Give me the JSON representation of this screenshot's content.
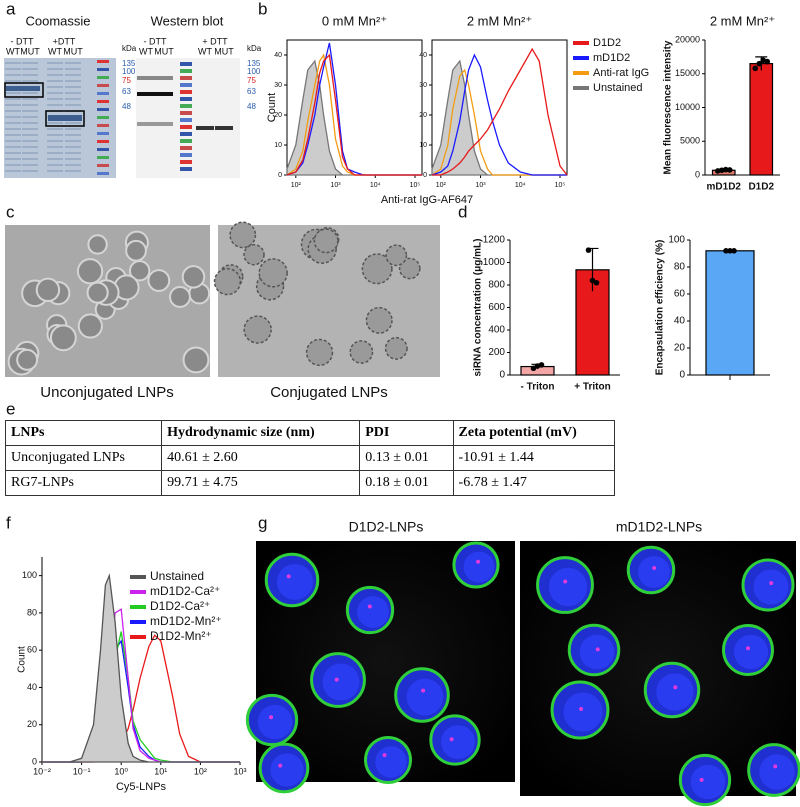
{
  "panel_labels": [
    "a",
    "b",
    "c",
    "d",
    "e",
    "f",
    "g"
  ],
  "gels": {
    "coomassie": {
      "title": "Coomassie",
      "conditions": [
        "- DTT",
        "+DTT"
      ],
      "lanes": [
        "WT",
        "MUT",
        "WT",
        "MUT"
      ]
    },
    "western": {
      "title": "Western blot",
      "conditions": [
        "- DTT",
        "+ DTT"
      ],
      "lanes": [
        "WT",
        "MUT",
        "WT",
        "MUT"
      ]
    },
    "ladder_unit": "kDa",
    "ladder": [
      "135",
      "100",
      "75",
      "63",
      "48"
    ],
    "ladder_colors": [
      "#2a5caa",
      "#2a5caa",
      "#d62020",
      "#2a5caa",
      "#2a5caa"
    ]
  },
  "images": {
    "tem": [
      "Unconjugated LNPs",
      "Conjugated LNPs"
    ],
    "confocal": [
      "D1D2-LNPs",
      "mD1D2-LNPs"
    ]
  },
  "table": {
    "header": [
      "LNPs",
      "Hydrodynamic size (nm)",
      "PDI",
      "Zeta potential (mV)"
    ],
    "rows": [
      [
        "Unconjugated LNPs",
        "40.61 ± 2.60",
        "0.13 ± 0.01",
        "-10.91 ± 1.44"
      ],
      [
        "RG7-LNPs",
        "99.71 ± 4.75",
        "0.18 ± 0.01",
        "-6.78 ± 1.47"
      ]
    ]
  },
  "chart_data": [
    {
      "type": "line",
      "title": "0 mM Mn²⁺",
      "xlabel": "Anti-rat IgG-AF647",
      "ylabel": "Count",
      "log_x": true,
      "x": [
        60,
        100,
        150,
        200,
        300,
        400,
        500,
        700,
        1000,
        1500,
        2000,
        3000,
        5000,
        10000,
        20000,
        30000,
        50000,
        100000,
        150000
      ],
      "xlim": [
        60,
        150000
      ],
      "xticks": [
        {
          "value": 100,
          "label": "10²"
        },
        {
          "value": 1000,
          "label": "10³"
        },
        {
          "value": 10000,
          "label": "10⁴"
        },
        {
          "value": 100000,
          "label": "10⁵"
        }
      ],
      "ylim": [
        0,
        45
      ],
      "yticks": [
        0,
        10,
        20,
        30,
        40
      ],
      "series": [
        {
          "color": "#777777",
          "fill": "#cccccc",
          "values": [
            2,
            10,
            25,
            35,
            38,
            30,
            20,
            8,
            2,
            0,
            0,
            0,
            0,
            0,
            0,
            0,
            0,
            0,
            0
          ]
        },
        {
          "color": "#f39c12",
          "values": [
            0,
            2,
            8,
            18,
            30,
            38,
            40,
            30,
            12,
            3,
            1,
            0,
            0,
            0,
            0,
            0,
            0,
            0,
            0
          ]
        },
        {
          "color": "#1a1aff",
          "values": [
            0,
            1,
            4,
            10,
            20,
            30,
            36,
            44,
            30,
            8,
            2,
            1,
            0,
            0,
            0,
            0,
            0,
            0,
            0
          ]
        },
        {
          "color": "#e8191a",
          "values": [
            0,
            1,
            5,
            12,
            24,
            34,
            38,
            40,
            25,
            6,
            2,
            0,
            0,
            0,
            0,
            0,
            0,
            0,
            0
          ]
        }
      ]
    },
    {
      "type": "line",
      "title": "2 mM Mn²⁺",
      "log_x": true,
      "legend": "outside-right",
      "x": [
        60,
        100,
        150,
        200,
        300,
        400,
        500,
        700,
        1000,
        1500,
        2000,
        3000,
        5000,
        10000,
        20000,
        30000,
        50000,
        100000,
        150000
      ],
      "xlim": [
        60,
        150000
      ],
      "xticks": [
        {
          "value": 100,
          "label": "10²"
        },
        {
          "value": 1000,
          "label": "10³"
        },
        {
          "value": 10000,
          "label": "10⁴"
        },
        {
          "value": 100000,
          "label": "10⁵"
        }
      ],
      "ylim": [
        0,
        45
      ],
      "yticks": [
        0,
        10,
        20,
        30,
        40
      ],
      "series": [
        {
          "name": "Unstained",
          "color": "#777777",
          "fill": "#cccccc",
          "values": [
            2,
            10,
            25,
            35,
            38,
            30,
            20,
            8,
            2,
            0,
            0,
            0,
            0,
            0,
            0,
            0,
            0,
            0,
            0
          ]
        },
        {
          "name": "Anti-rat IgG",
          "color": "#f39c12",
          "values": [
            0,
            2,
            10,
            22,
            33,
            35,
            30,
            20,
            8,
            2,
            0,
            0,
            0,
            0,
            0,
            0,
            0,
            0,
            0
          ]
        },
        {
          "name": "mD1D2",
          "color": "#1a1aff",
          "values": [
            0,
            1,
            3,
            8,
            18,
            28,
            35,
            40,
            36,
            25,
            18,
            10,
            4,
            1,
            0,
            0,
            0,
            0,
            0
          ]
        },
        {
          "name": "D1D2",
          "color": "#e8191a",
          "values": [
            0,
            0,
            1,
            2,
            4,
            6,
            8,
            10,
            12,
            15,
            18,
            22,
            28,
            35,
            42,
            38,
            20,
            3,
            0
          ]
        }
      ]
    },
    {
      "type": "bar",
      "title": "2 mM Mn²⁺",
      "ylabel": "Mean fluorescence intensity",
      "categories": [
        "mD1D2",
        "D1D2"
      ],
      "values": [
        700,
        16500
      ],
      "errors": [
        150,
        1000
      ],
      "points": [
        [
          600,
          700,
          800,
          750
        ],
        [
          15800,
          16500,
          17000,
          16800
        ]
      ],
      "colors": [
        "#e07b6a",
        "#e8191a"
      ],
      "ylim": [
        0,
        20000
      ],
      "yticks": [
        0,
        5000,
        10000,
        15000,
        20000
      ]
    },
    {
      "type": "bar",
      "ylabel": "siRNA concentration (μg/mL)",
      "categories": [
        "- Triton",
        "+ Triton"
      ],
      "values": [
        75,
        935
      ],
      "errors": [
        20,
        190
      ],
      "points": [
        [
          60,
          80,
          90
        ],
        [
          1110,
          840,
          820
        ]
      ],
      "colors": [
        "#f2a6a6",
        "#e8191a"
      ],
      "ylim": [
        0,
        1200
      ],
      "yticks": [
        0,
        200,
        400,
        600,
        800,
        1000,
        1200
      ]
    },
    {
      "type": "bar",
      "ylabel": "Encapsulation efficiency (%)",
      "categories": [
        null
      ],
      "values": [
        92
      ],
      "errors": [
        0.5
      ],
      "points": [
        [
          92,
          92,
          92
        ]
      ],
      "colors": [
        "#5aa7f5"
      ],
      "ylim": [
        0,
        100
      ],
      "yticks": [
        0,
        20,
        40,
        60,
        80,
        100
      ]
    },
    {
      "type": "line",
      "xlabel": "Cy5-LNPs",
      "ylabel": "Count",
      "log_x": true,
      "legend": "upper right",
      "x": [
        0.01,
        0.05,
        0.1,
        0.2,
        0.3,
        0.4,
        0.5,
        0.7,
        1,
        1.5,
        2,
        3,
        5,
        7,
        10,
        20,
        30,
        50,
        100,
        1000
      ],
      "xlim": [
        0.01,
        1000
      ],
      "xticks": [
        {
          "value": 0.01,
          "label": "10⁻²"
        },
        {
          "value": 0.1,
          "label": "10⁻¹"
        },
        {
          "value": 1,
          "label": "10⁰"
        },
        {
          "value": 10,
          "label": "10¹"
        },
        {
          "value": 100,
          "label": "10²"
        },
        {
          "value": 1000,
          "label": "10³"
        }
      ],
      "ylim": [
        0,
        110
      ],
      "yticks": [
        0,
        20,
        40,
        60,
        80,
        100
      ],
      "series": [
        {
          "name": "D1D2-Mn²⁺",
          "color": "#e8191a",
          "values": [
            0,
            0,
            0,
            0,
            1,
            2,
            3,
            6,
            10,
            18,
            28,
            45,
            62,
            68,
            65,
            35,
            15,
            3,
            0,
            0
          ]
        },
        {
          "name": "mD1D2-Mn²⁺",
          "color": "#1a1aff",
          "values": [
            0,
            0,
            0,
            3,
            12,
            25,
            40,
            60,
            65,
            40,
            20,
            8,
            3,
            1,
            0,
            0,
            0,
            0,
            0,
            0
          ]
        },
        {
          "name": "D1D2-Ca²⁺",
          "color": "#22cc22",
          "values": [
            0,
            0,
            0,
            3,
            12,
            25,
            38,
            55,
            70,
            45,
            22,
            12,
            6,
            2,
            1,
            0,
            0,
            0,
            0,
            0
          ]
        },
        {
          "name": "mD1D2-Ca²⁺",
          "color": "#cc22ee",
          "values": [
            0,
            0,
            0,
            4,
            15,
            30,
            50,
            80,
            82,
            45,
            18,
            6,
            2,
            1,
            0,
            0,
            0,
            0,
            0,
            0
          ]
        },
        {
          "name": "Unstained",
          "color": "#555555",
          "fill": "#cccccc",
          "values": [
            0,
            0,
            2,
            20,
            60,
            95,
            100,
            75,
            35,
            10,
            3,
            1,
            0,
            0,
            0,
            0,
            0,
            0,
            0,
            0
          ]
        }
      ]
    }
  ]
}
